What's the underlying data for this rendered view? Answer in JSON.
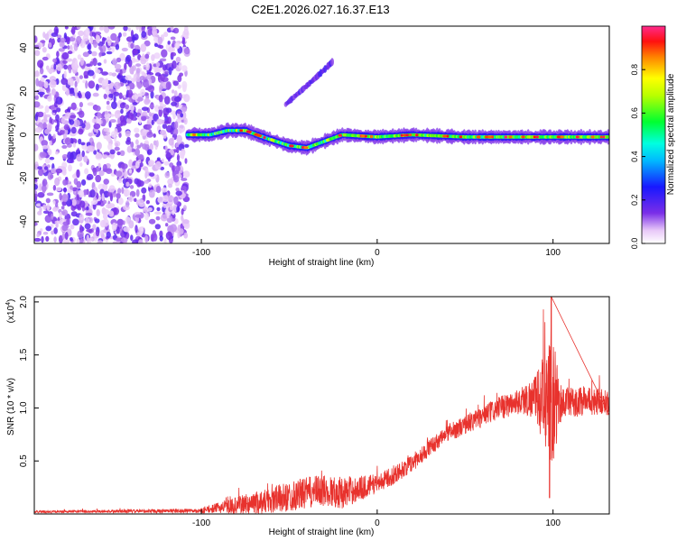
{
  "title": "C2E1.2026.027.16.37.E13",
  "colors": {
    "snr_line": "#e8322d",
    "axis": "#000000",
    "background": "#ffffff"
  },
  "chart_data": [
    {
      "type": "heatmap",
      "title": "C2E1.2026.027.16.37.E13",
      "xlabel": "Height of straight line (km)",
      "ylabel": "Frequency (Hz)",
      "xlim": [
        -195,
        132
      ],
      "ylim": [
        -50,
        50
      ],
      "xticks": [
        -100,
        0,
        100
      ],
      "yticks": [
        -40,
        -20,
        0,
        20,
        40
      ],
      "colorbar": {
        "label": "Normalized spectral amplitude",
        "range": [
          0.0,
          1.0
        ],
        "ticks": [
          0.0,
          0.2,
          0.4,
          0.6,
          0.8
        ],
        "colormap": "rainbow (white-violet-blue-cyan-green-yellow-red-magenta)",
        "placement": "right"
      },
      "features": [
        {
          "kind": "noise",
          "x_range": [
            -195,
            -108
          ],
          "y_range": [
            -50,
            50
          ],
          "amplitude": 0.15
        },
        {
          "kind": "ridge",
          "points": [
            [
              -108,
              0
            ],
            [
              -95,
              0
            ],
            [
              -85,
              2
            ],
            [
              -75,
              2
            ],
            [
              -65,
              -1
            ],
            [
              -50,
              -5
            ],
            [
              -40,
              -6
            ],
            [
              -30,
              -3
            ],
            [
              -20,
              0
            ],
            [
              0,
              -1
            ],
            [
              20,
              0
            ],
            [
              50,
              -1
            ],
            [
              80,
              -1
            ],
            [
              100,
              -1
            ],
            [
              132,
              -1
            ]
          ],
          "peak_amplitude": 1.0
        },
        {
          "kind": "blob",
          "points": [
            [
              -52,
              14
            ],
            [
              -38,
              24
            ],
            [
              -30,
              30
            ],
            [
              -25,
              34
            ]
          ],
          "amplitude": 0.2
        }
      ]
    },
    {
      "type": "line",
      "xlabel": "Height of straight line (km)",
      "ylabel": "SNR (10 * v/v)",
      "y_multiplier": "(x10",
      "y_multiplier_exp": "4",
      "xlim": [
        -195,
        132
      ],
      "ylim": [
        0,
        2.05
      ],
      "xticks": [
        -100,
        0,
        100
      ],
      "yticks": [
        0.5,
        1.0,
        1.5,
        2.0
      ],
      "series": [
        {
          "trend": {
            "x": [
              -195,
              -100,
              -90,
              -80,
              -60,
              -40,
              -30,
              -20,
              -10,
              0,
              10,
              20,
              30,
              40,
              50,
              60,
              70,
              80,
              90,
              100,
              110,
              120,
              132
            ],
            "y": [
              0.02,
              0.03,
              0.06,
              0.08,
              0.13,
              0.2,
              0.22,
              0.2,
              0.24,
              0.29,
              0.37,
              0.48,
              0.63,
              0.76,
              0.84,
              0.92,
              1.0,
              1.06,
              1.1,
              1.05,
              1.05,
              1.07,
              1.05
            ]
          },
          "noise_amplitude": {
            "x": [
              -195,
              -100,
              -80,
              -60,
              -40,
              -20,
              0,
              20,
              40,
              60,
              80,
              90,
              95,
              100,
              105,
              132
            ],
            "y": [
              0.01,
              0.02,
              0.08,
              0.13,
              0.15,
              0.15,
              0.09,
              0.08,
              0.08,
              0.1,
              0.12,
              0.2,
              0.45,
              0.6,
              0.15,
              0.12
            ]
          },
          "notable_points": [
            {
              "x": 99,
              "y": 2.05
            },
            {
              "x": 98,
              "y": 0.15
            }
          ]
        }
      ]
    }
  ]
}
